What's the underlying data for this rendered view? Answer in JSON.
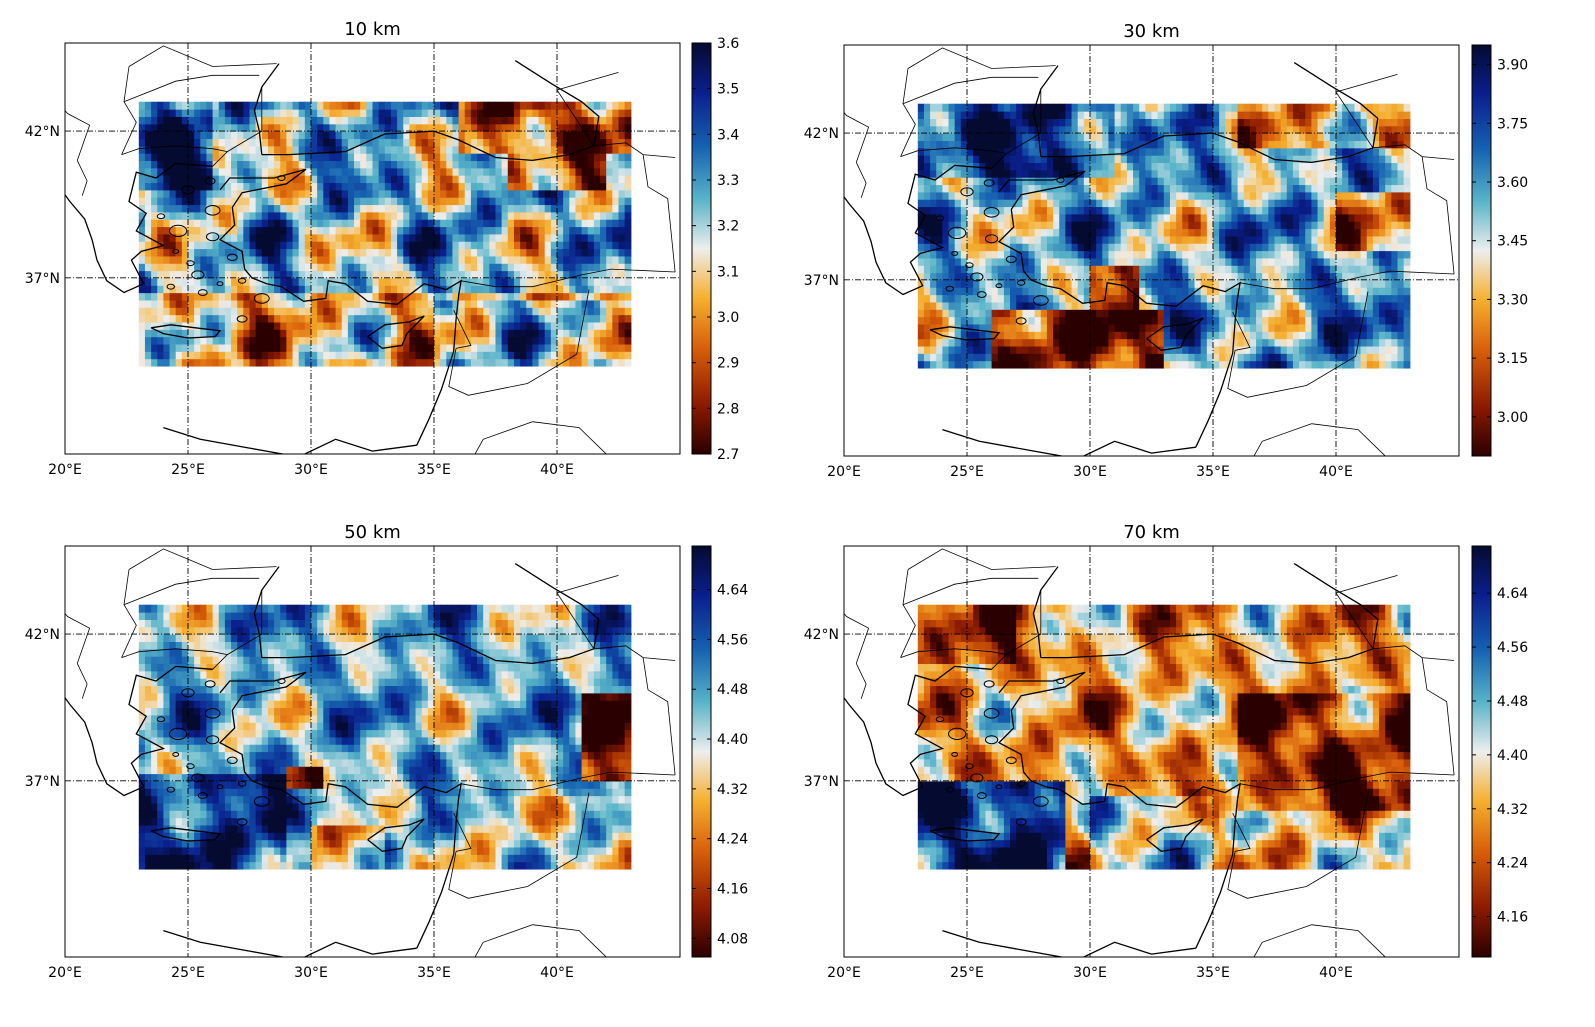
{
  "chart_data": [
    {
      "type": "heatmap",
      "title": "10 km",
      "x_tick_labels": [
        "20°E",
        "25°E",
        "30°E",
        "35°E",
        "40°E"
      ],
      "y_tick_labels": [
        "42°N",
        "37°N"
      ],
      "colorbar_ticks": [
        "3.6",
        "3.5",
        "3.4",
        "3.3",
        "3.2",
        "3.1",
        "3.0",
        "2.9",
        "2.8",
        "2.7"
      ],
      "colorbar_range": [
        2.7,
        3.6
      ],
      "xlim": [
        20,
        45
      ],
      "ylim": [
        31,
        45
      ],
      "data_region": {
        "lon": [
          23,
          43
        ],
        "lat": [
          34,
          43
        ]
      },
      "grid": true
    },
    {
      "type": "heatmap",
      "title": "30 km",
      "x_tick_labels": [
        "20°E",
        "25°E",
        "30°E",
        "35°E",
        "40°E"
      ],
      "y_tick_labels": [
        "42°N",
        "37°N"
      ],
      "colorbar_ticks": [
        "3.90",
        "3.75",
        "3.60",
        "3.45",
        "3.30",
        "3.15",
        "3.00"
      ],
      "colorbar_range": [
        2.9,
        3.95
      ],
      "xlim": [
        20,
        45
      ],
      "ylim": [
        31,
        45
      ],
      "data_region": {
        "lon": [
          23,
          43
        ],
        "lat": [
          34,
          43
        ]
      },
      "grid": true
    },
    {
      "type": "heatmap",
      "title": "50 km",
      "x_tick_labels": [
        "20°E",
        "25°E",
        "30°E",
        "35°E",
        "40°E"
      ],
      "y_tick_labels": [
        "42°N",
        "37°N"
      ],
      "colorbar_ticks": [
        "4.64",
        "4.56",
        "4.48",
        "4.40",
        "4.32",
        "4.24",
        "4.16",
        "4.08"
      ],
      "colorbar_range": [
        4.05,
        4.71
      ],
      "xlim": [
        20,
        45
      ],
      "ylim": [
        31,
        45
      ],
      "data_region": {
        "lon": [
          23,
          43
        ],
        "lat": [
          34,
          43
        ]
      },
      "grid": true
    },
    {
      "type": "heatmap",
      "title": "70 km",
      "x_tick_labels": [
        "20°E",
        "25°E",
        "30°E",
        "35°E",
        "40°E"
      ],
      "y_tick_labels": [
        "42°N",
        "37°N"
      ],
      "colorbar_ticks": [
        "4.64",
        "4.56",
        "4.48",
        "4.40",
        "4.32",
        "4.24",
        "4.16"
      ],
      "colorbar_range": [
        4.1,
        4.71
      ],
      "xlim": [
        20,
        45
      ],
      "ylim": [
        31,
        45
      ],
      "data_region": {
        "lon": [
          23,
          43
        ],
        "lat": [
          34,
          43
        ]
      },
      "grid": true
    }
  ],
  "colors": {
    "colormap": [
      "#2a0000",
      "#8b1a00",
      "#d9600a",
      "#f5b030",
      "#eeeeee",
      "#58b4c8",
      "#1560b0",
      "#0a1f8c",
      "#050a30"
    ],
    "coastline": "#000000",
    "grid": "#000000"
  }
}
